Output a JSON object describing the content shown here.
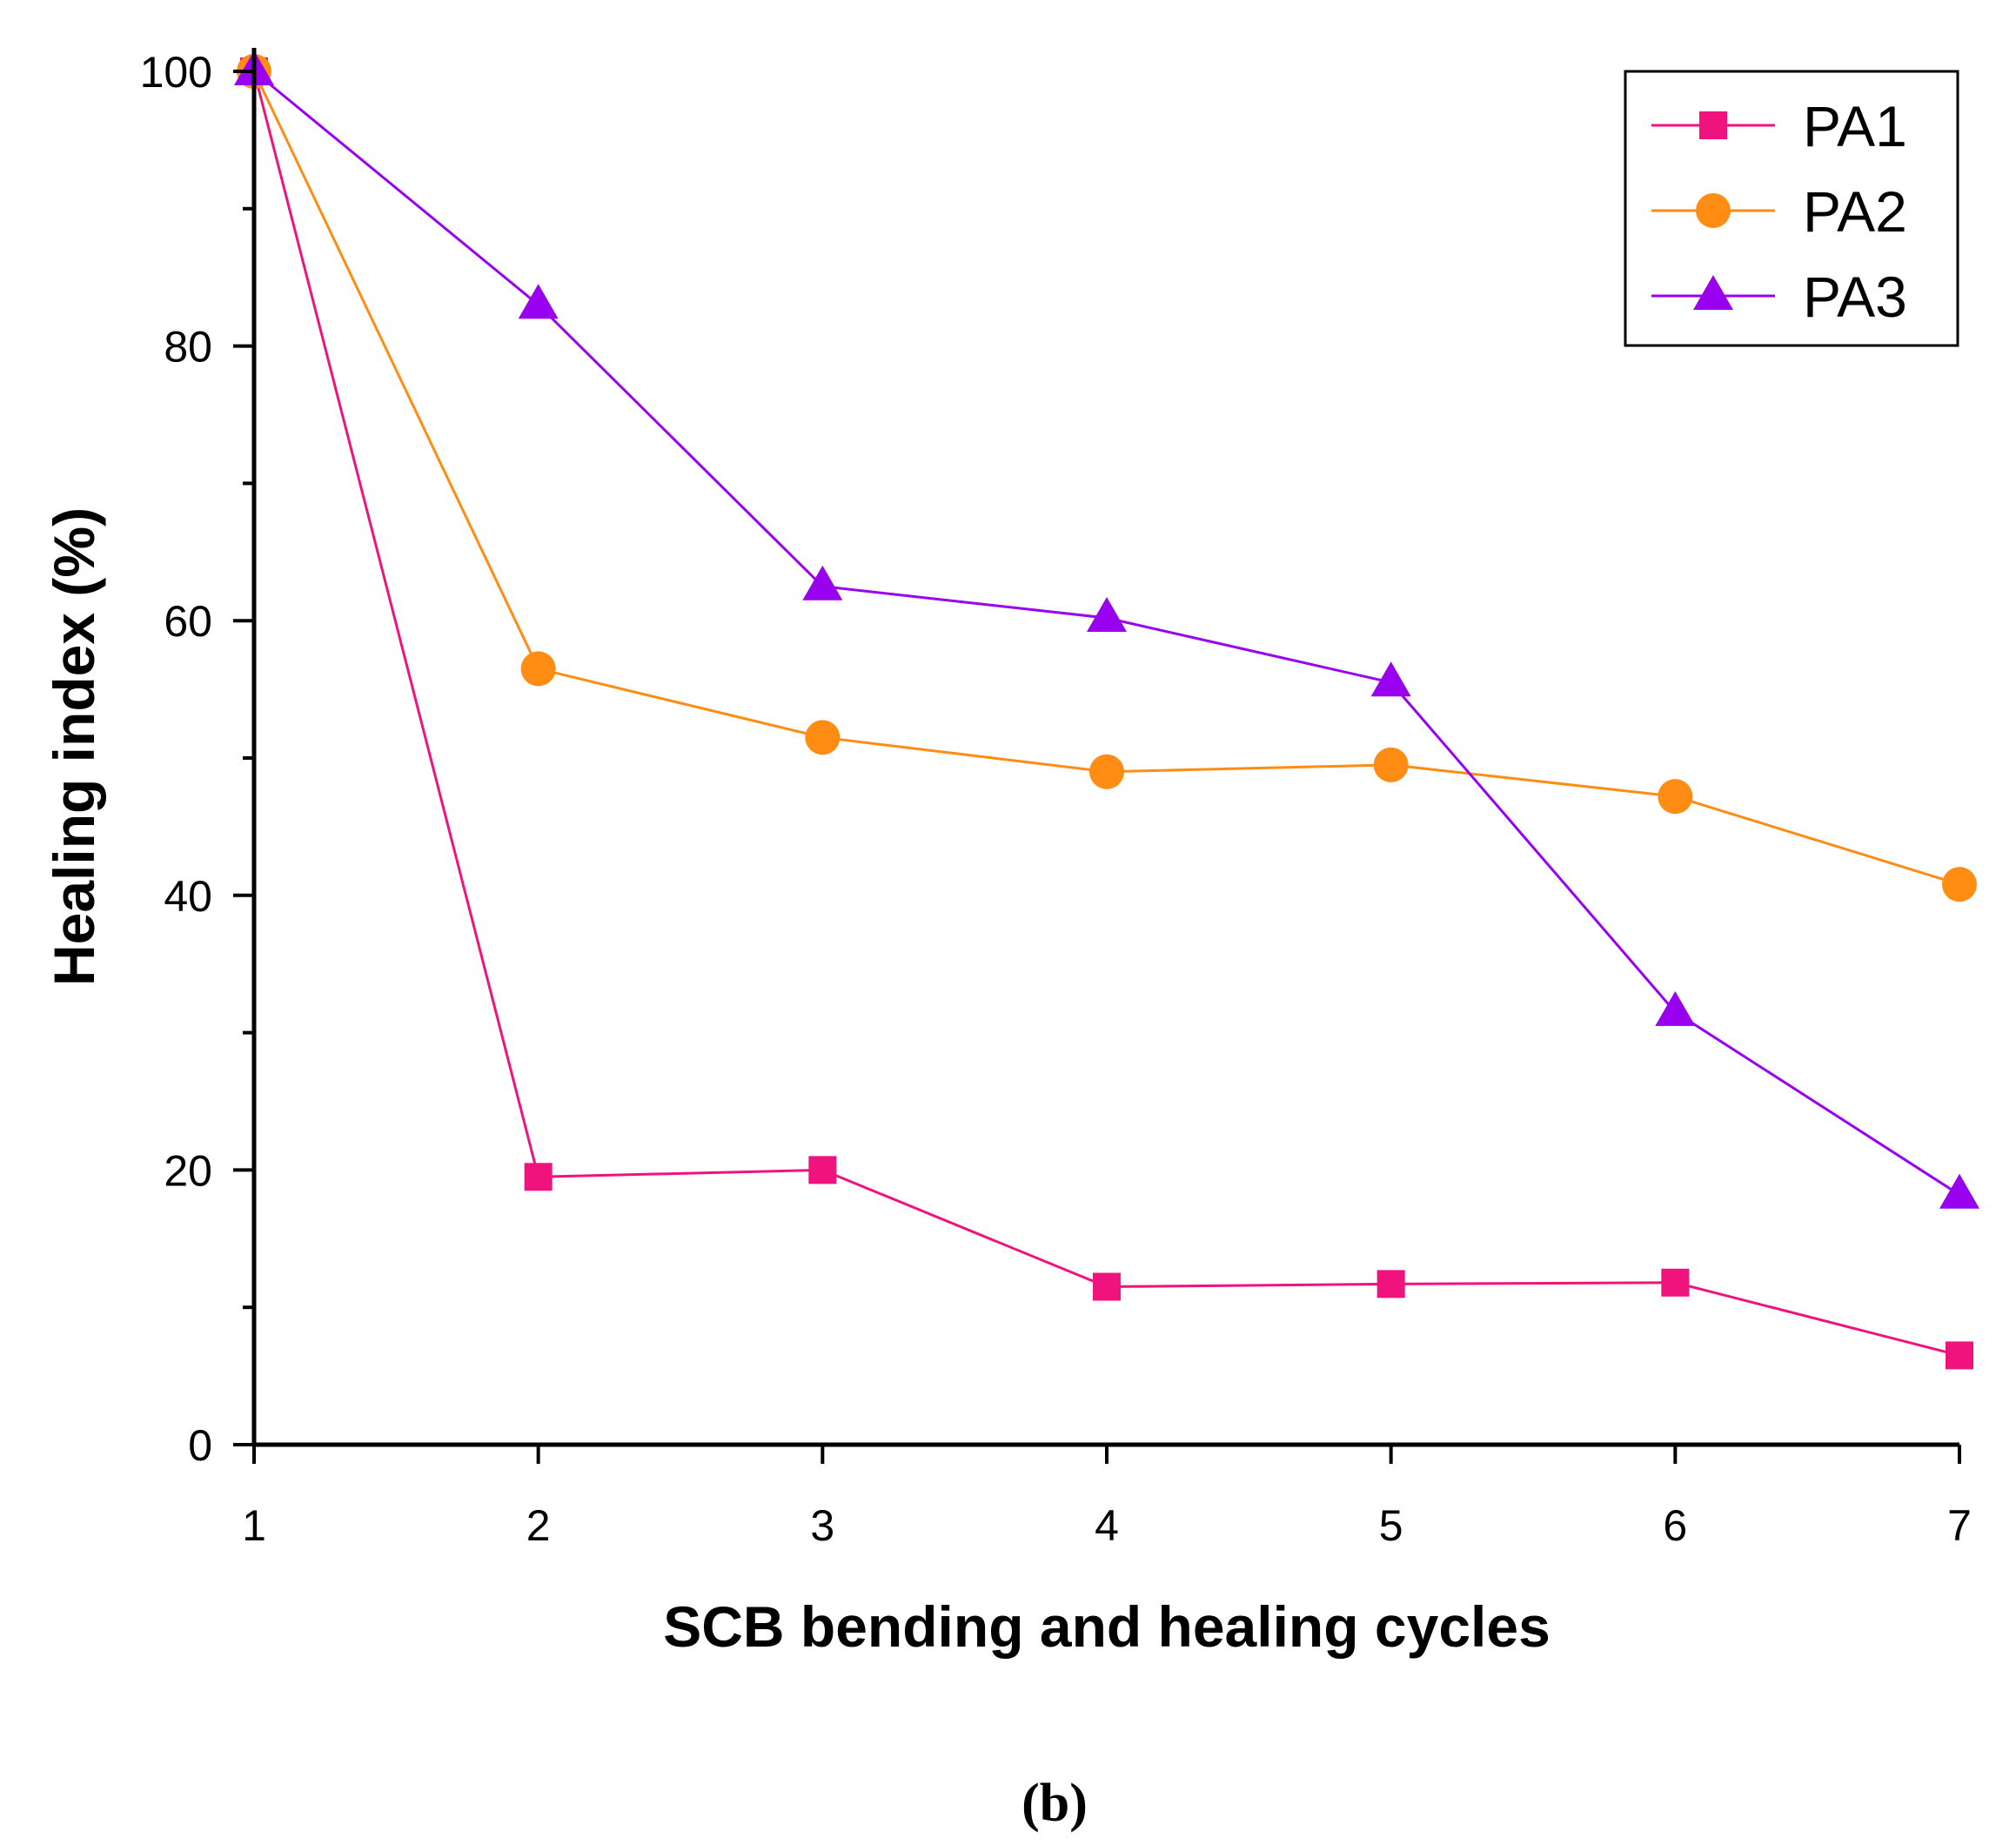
{
  "chart_data": {
    "type": "line",
    "title": "",
    "xlabel": "SCB bending and healing cycles",
    "ylabel": "Healing index (%)",
    "panel_label": "(b)",
    "x": [
      1,
      2,
      3,
      4,
      5,
      6,
      7
    ],
    "xlim": [
      1,
      7
    ],
    "ylim": [
      0,
      100
    ],
    "x_ticks": [
      1,
      2,
      3,
      4,
      5,
      6,
      7
    ],
    "y_ticks": [
      0,
      20,
      40,
      60,
      80,
      100
    ],
    "y_minor_ticks": [
      10,
      30,
      50,
      70,
      90
    ],
    "grid": false,
    "legend_position": "top-right",
    "series": [
      {
        "name": "PA1",
        "marker": "square",
        "color": "#f0137e",
        "values": [
          100,
          19.5,
          20,
          11.5,
          11.7,
          11.8,
          6.5
        ]
      },
      {
        "name": "PA2",
        "marker": "circle",
        "color": "#ff8c13",
        "values": [
          100,
          56.5,
          51.5,
          49,
          49.5,
          47.2,
          40.8
        ]
      },
      {
        "name": "PA3",
        "marker": "triangle",
        "color": "#9a00f0",
        "values": [
          100,
          83,
          62.5,
          60.2,
          55.5,
          31.5,
          18.2
        ]
      }
    ]
  }
}
